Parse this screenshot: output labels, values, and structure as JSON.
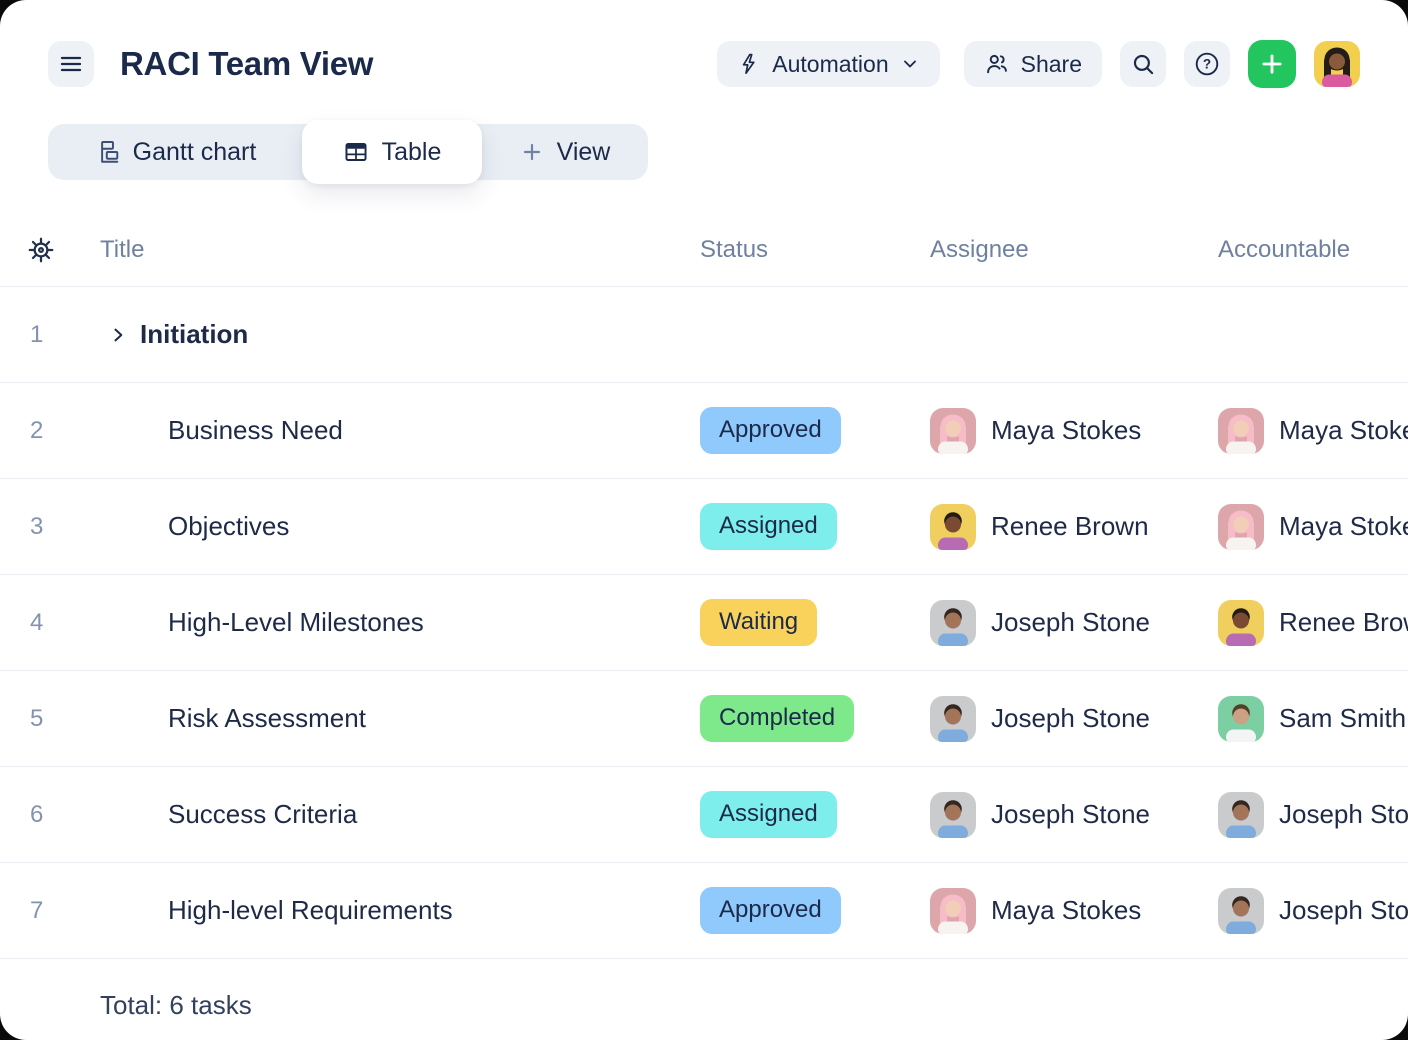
{
  "header": {
    "title": "RACI Team View",
    "automation_label": "Automation",
    "share_label": "Share"
  },
  "tabs": [
    {
      "label": "Gantt chart",
      "icon": "gantt-icon",
      "active": false
    },
    {
      "label": "Table",
      "icon": "table-icon",
      "active": true
    },
    {
      "label": "View",
      "icon": "plus-icon",
      "active": false
    }
  ],
  "table": {
    "columns": {
      "title": "Title",
      "status": "Status",
      "assignee": "Assignee",
      "accountable": "Accountable"
    },
    "rows": [
      {
        "num": "1",
        "title": "Initiation",
        "group": true
      },
      {
        "num": "2",
        "title": "Business Need",
        "status": "Approved",
        "assignee": "maya",
        "accountable": "maya"
      },
      {
        "num": "3",
        "title": "Objectives",
        "status": "Assigned",
        "assignee": "renee",
        "accountable": "maya"
      },
      {
        "num": "4",
        "title": "High-Level Milestones",
        "status": "Waiting",
        "assignee": "joseph",
        "accountable": "renee"
      },
      {
        "num": "5",
        "title": "Risk Assessment",
        "status": "Completed",
        "assignee": "joseph",
        "accountable": "sam"
      },
      {
        "num": "6",
        "title": "Success Criteria",
        "status": "Assigned",
        "assignee": "joseph",
        "accountable": "joseph"
      },
      {
        "num": "7",
        "title": "High-level Requirements",
        "status": "Approved",
        "assignee": "maya",
        "accountable": "joseph"
      }
    ],
    "total_label": "Total: 6 tasks"
  },
  "statuses": {
    "Approved": "#90c9fb",
    "Assigned": "#7deeeb",
    "Waiting": "#f9d25c",
    "Completed": "#7ee98a"
  },
  "people": {
    "maya": {
      "name": "Maya Stokes",
      "bg": "#dda6ab",
      "skin": "#f2cdb7",
      "hair": "#f6bcc8",
      "shirt": "#f7f3f1",
      "long_hair": true
    },
    "renee": {
      "name": "Renee Brown",
      "bg": "#f0cf5e",
      "skin": "#7a4b32",
      "hair": "#231c16",
      "shirt": "#b76bb2",
      "long_hair": false
    },
    "joseph": {
      "name": "Joseph Stone",
      "bg": "#c9cbcd",
      "skin": "#a3745a",
      "hair": "#32281f",
      "shirt": "#7fabdd",
      "long_hair": false
    },
    "sam": {
      "name": "Sam Smith",
      "bg": "#7bcfa3",
      "skin": "#caa183",
      "hair": "#544026",
      "shirt": "#f3f4f5",
      "long_hair": false
    },
    "user": {
      "name": "Current user",
      "bg": "#f2cf4f",
      "skin": "#8a5a3b",
      "hair": "#241d17",
      "shirt": "#db5ba0",
      "long_hair": true
    }
  },
  "colors": {
    "accent_green": "#22c55e",
    "navy": "#1b2a4a",
    "muted": "#6f80a0"
  }
}
